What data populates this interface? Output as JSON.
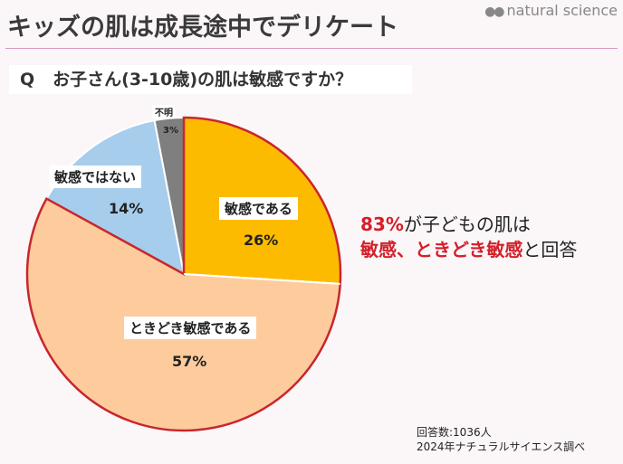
{
  "header": {
    "title": "キッズの肌は成長途中でデリケート",
    "brand": "natural science"
  },
  "question": {
    "prefix": "Q",
    "text": "お子さん(3-10歳)の肌は敏感ですか？"
  },
  "chart_data": {
    "type": "pie",
    "start": "top, clockwise",
    "slices": [
      {
        "label": "敏感である",
        "value": 26,
        "pct_label": "26%",
        "color": "#fdbb00"
      },
      {
        "label": "ときどき敏感である",
        "value": 57,
        "pct_label": "57%",
        "color": "#fdcb9c"
      },
      {
        "label": "敏感ではない",
        "value": 14,
        "pct_label": "14%",
        "color": "#a7cdec"
      },
      {
        "label": "不明",
        "value": 3,
        "pct_label": "3%",
        "color": "#7f7f7f"
      }
    ],
    "highlight_outline_color": "#c8262c"
  },
  "callout": {
    "line1_red": "83%",
    "line1_rest": "が子どもの肌は",
    "line2_red": "敏感、ときどき敏感",
    "line2_rest": "と回答"
  },
  "note": {
    "respondents": "回答数:1036人",
    "source": "2024年ナチュラルサイエンス調べ"
  }
}
